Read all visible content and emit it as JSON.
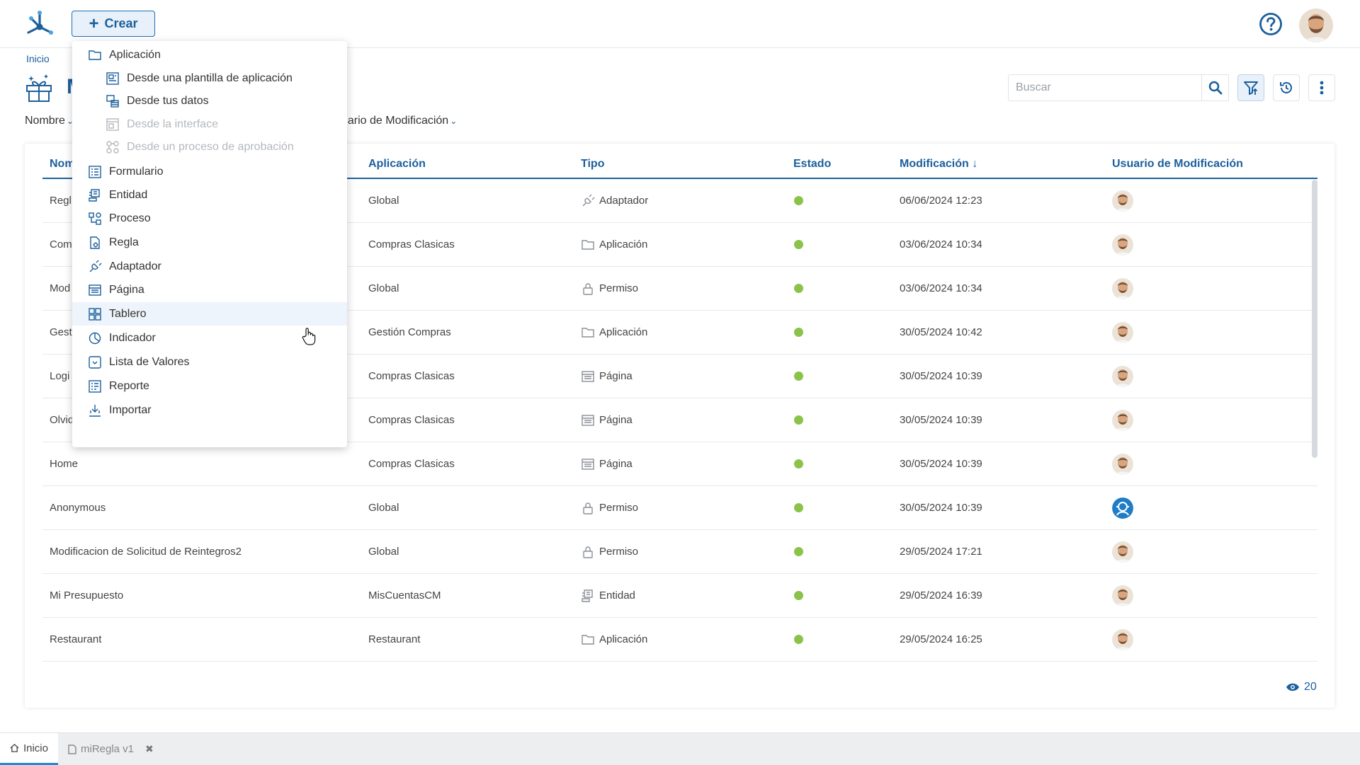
{
  "header": {
    "create_label": "Crear"
  },
  "breadcrumb": "Inicio",
  "page_title": "M",
  "search": {
    "placeholder": "Buscar"
  },
  "sort": {
    "left": "Nombre",
    "right": "uario de Modificación"
  },
  "table": {
    "headers": {
      "nombre": "Nom",
      "aplicacion": "Aplicación",
      "tipo": "Tipo",
      "estado": "Estado",
      "modificacion": "Modificación",
      "usuario": "Usuario de Modificación"
    },
    "rows": [
      {
        "nombre": "Regl",
        "aplicacion": "Global",
        "tipo": "Adaptador",
        "tipo_icon": "adapter-icon",
        "estado": "active",
        "modificacion": "06/06/2024 12:23",
        "user": "user-avatar"
      },
      {
        "nombre": "Com",
        "aplicacion": "Compras Clasicas",
        "tipo": "Aplicación",
        "tipo_icon": "folder-icon",
        "estado": "active",
        "modificacion": "03/06/2024 10:34",
        "user": "user-avatar"
      },
      {
        "nombre": "Mod",
        "aplicacion": "Global",
        "tipo": "Permiso",
        "tipo_icon": "lock-icon",
        "estado": "active",
        "modificacion": "03/06/2024 10:34",
        "user": "user-avatar"
      },
      {
        "nombre": "Gest",
        "aplicacion": "Gestión Compras",
        "tipo": "Aplicación",
        "tipo_icon": "folder-icon",
        "estado": "active",
        "modificacion": "30/05/2024 10:42",
        "user": "user-avatar"
      },
      {
        "nombre": "Logi",
        "aplicacion": "Compras Clasicas",
        "tipo": "Página",
        "tipo_icon": "page-icon",
        "estado": "active",
        "modificacion": "30/05/2024 10:39",
        "user": "user-avatar"
      },
      {
        "nombre": "Olvid",
        "aplicacion": "Compras Clasicas",
        "tipo": "Página",
        "tipo_icon": "page-icon",
        "estado": "active",
        "modificacion": "30/05/2024 10:39",
        "user": "user-avatar"
      },
      {
        "nombre": "Home",
        "aplicacion": "Compras Clasicas",
        "tipo": "Página",
        "tipo_icon": "page-icon",
        "estado": "active",
        "modificacion": "30/05/2024 10:39",
        "user": "user-avatar"
      },
      {
        "nombre": "Anonymous",
        "aplicacion": "Global",
        "tipo": "Permiso",
        "tipo_icon": "lock-icon",
        "estado": "active",
        "modificacion": "30/05/2024 10:39",
        "user": "system-avatar"
      },
      {
        "nombre": "Modificacion de Solicitud de Reintegros2",
        "aplicacion": "Global",
        "tipo": "Permiso",
        "tipo_icon": "lock-icon",
        "estado": "active",
        "modificacion": "29/05/2024 17:21",
        "user": "user-avatar"
      },
      {
        "nombre": "Mi Presupuesto",
        "aplicacion": "MisCuentasCM",
        "tipo": "Entidad",
        "tipo_icon": "entity-icon",
        "estado": "active",
        "modificacion": "29/05/2024 16:39",
        "user": "user-avatar"
      },
      {
        "nombre": "Restaurant",
        "aplicacion": "Restaurant",
        "tipo": "Aplicación",
        "tipo_icon": "folder-icon",
        "estado": "active",
        "modificacion": "29/05/2024 16:25",
        "user": "user-avatar"
      }
    ]
  },
  "footer": {
    "count": "20"
  },
  "bottom_tabs": [
    {
      "label": "Inicio",
      "active": true
    },
    {
      "label": "miRegla v1",
      "active": false
    }
  ],
  "create_menu": [
    {
      "label": "Aplicación",
      "icon": "folder-icon",
      "sub": false,
      "disabled": false
    },
    {
      "label": "Desde una plantilla de aplicación",
      "icon": "template-icon",
      "sub": true,
      "disabled": false
    },
    {
      "label": "Desde tus datos",
      "icon": "data-icon",
      "sub": true,
      "disabled": false
    },
    {
      "label": "Desde la interface",
      "icon": "interface-icon",
      "sub": true,
      "disabled": true
    },
    {
      "label": "Desde un proceso de aprobación",
      "icon": "approval-process-icon",
      "sub": true,
      "disabled": true
    },
    {
      "label": "Formulario",
      "icon": "form-icon",
      "sub": false,
      "disabled": false
    },
    {
      "label": "Entidad",
      "icon": "entity-icon",
      "sub": false,
      "disabled": false
    },
    {
      "label": "Proceso",
      "icon": "process-icon",
      "sub": false,
      "disabled": false
    },
    {
      "label": "Regla",
      "icon": "rule-icon",
      "sub": false,
      "disabled": false
    },
    {
      "label": "Adaptador",
      "icon": "adapter-icon",
      "sub": false,
      "disabled": false
    },
    {
      "label": "Página",
      "icon": "page-icon",
      "sub": false,
      "disabled": false
    },
    {
      "label": "Tablero",
      "icon": "dashboard-icon",
      "sub": false,
      "disabled": false,
      "hover": true
    },
    {
      "label": "Indicador",
      "icon": "indicator-icon",
      "sub": false,
      "disabled": false
    },
    {
      "label": "Lista de Valores",
      "icon": "value-list-icon",
      "sub": false,
      "disabled": false
    },
    {
      "label": "Reporte",
      "icon": "report-icon",
      "sub": false,
      "disabled": false
    },
    {
      "label": "Importar",
      "icon": "import-icon",
      "sub": false,
      "disabled": false
    }
  ],
  "colors": {
    "primary": "#1b5f9c",
    "status_active": "#8bc34a",
    "hover_bg": "#eef4fb"
  }
}
